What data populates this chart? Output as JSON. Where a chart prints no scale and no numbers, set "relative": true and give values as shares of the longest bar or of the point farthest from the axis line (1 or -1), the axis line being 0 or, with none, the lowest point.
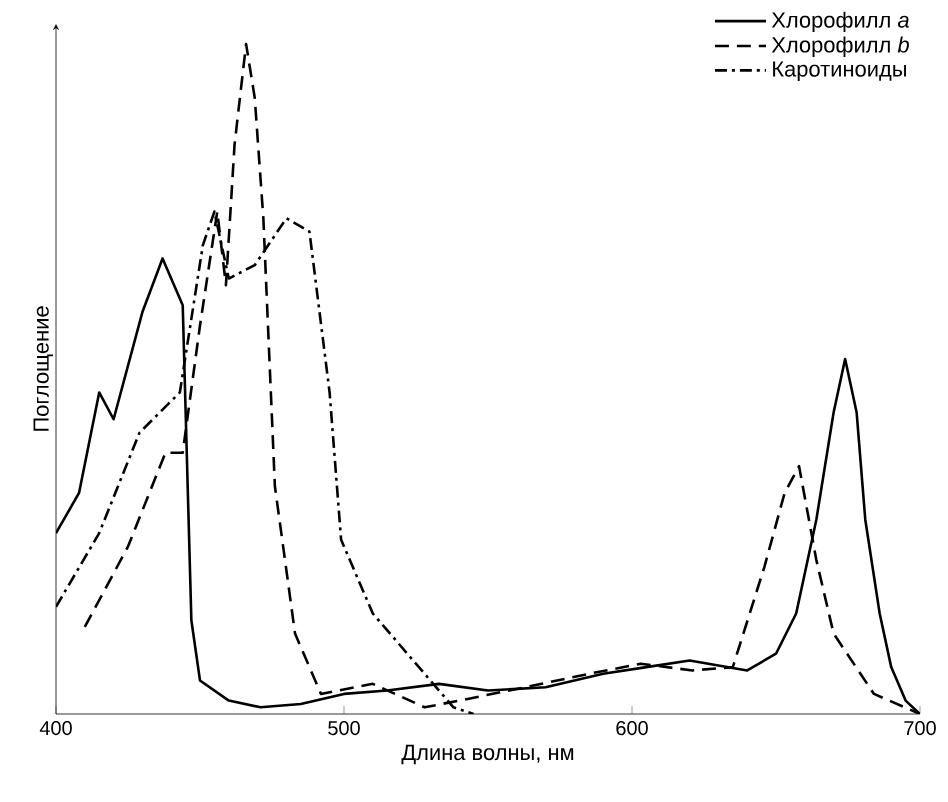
{
  "chart_data": {
    "type": "line",
    "xlabel": "Длина волны, нм",
    "ylabel": "Поглощение",
    "relative": true,
    "xlim": [
      400,
      700
    ],
    "xticks": [
      400,
      500,
      600,
      700
    ],
    "legend": "top right",
    "series": [
      {
        "name": "Хлорофилл *a*",
        "color": "#000000",
        "line_style": "solid",
        "x": [
          400,
          408,
          415,
          420,
          430,
          437,
          444,
          447,
          450,
          460,
          471,
          485,
          500,
          515,
          533,
          550,
          570,
          590,
          605,
          620,
          640,
          650,
          657,
          664,
          670,
          674,
          678,
          681,
          686,
          690,
          695,
          700
        ],
        "values": [
          0.27,
          0.33,
          0.48,
          0.44,
          0.6,
          0.68,
          0.61,
          0.14,
          0.05,
          0.02,
          0.01,
          0.015,
          0.03,
          0.035,
          0.045,
          0.035,
          0.04,
          0.06,
          0.07,
          0.08,
          0.065,
          0.09,
          0.15,
          0.29,
          0.45,
          0.53,
          0.45,
          0.29,
          0.15,
          0.07,
          0.02,
          0.0
        ]
      },
      {
        "name": "Хлорофилл *b*",
        "color": "#000000",
        "line_style": "dashed",
        "x": [
          410,
          425,
          438,
          444,
          450,
          456,
          459,
          462,
          466,
          469,
          472,
          476,
          483,
          492,
          510,
          528,
          540,
          563,
          585,
          603,
          621,
          635,
          646,
          653,
          658,
          664,
          670,
          684,
          700
        ],
        "values": [
          0.13,
          0.25,
          0.39,
          0.39,
          0.58,
          0.75,
          0.64,
          0.85,
          1.0,
          0.92,
          0.74,
          0.34,
          0.12,
          0.03,
          0.045,
          0.01,
          0.02,
          0.04,
          0.06,
          0.075,
          0.065,
          0.07,
          0.22,
          0.33,
          0.37,
          0.23,
          0.12,
          0.03,
          0.0
        ]
      },
      {
        "name": "Каротиноиды",
        "color": "#000000",
        "line_style": "dashdot",
        "x": [
          400,
          415,
          429,
          443,
          451,
          455,
          460,
          469,
          480,
          488,
          495,
          499,
          510,
          524,
          538,
          545
        ],
        "values": [
          0.16,
          0.27,
          0.42,
          0.48,
          0.7,
          0.75,
          0.65,
          0.67,
          0.74,
          0.72,
          0.48,
          0.26,
          0.15,
          0.08,
          0.01,
          0.0
        ]
      }
    ]
  }
}
